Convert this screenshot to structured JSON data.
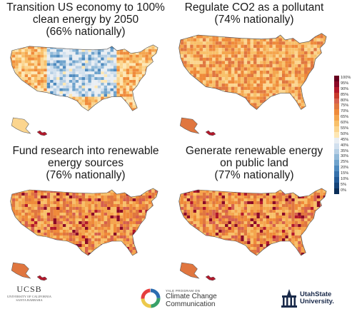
{
  "panels": [
    {
      "title_lines": [
        "Transition US economy to 100%",
        "clean energy by 2050",
        "(66% nationally)"
      ],
      "national_percent": 66,
      "scheme": "mixed"
    },
    {
      "title_lines": [
        "Regulate CO2 as a pollutant",
        "(74% nationally)"
      ],
      "national_percent": 74,
      "scheme": "orange"
    },
    {
      "title_lines": [
        "Fund research into renewable",
        "energy sources",
        "(76% nationally)"
      ],
      "national_percent": 76,
      "scheme": "orange-deep"
    },
    {
      "title_lines": [
        "Generate renewable energy",
        "on public land",
        "(77% nationally)"
      ],
      "national_percent": 77,
      "scheme": "orange-deep"
    }
  ],
  "legend": {
    "labels": [
      "100%",
      "95%",
      "90%",
      "85%",
      "80%",
      "75%",
      "70%",
      "65%",
      "60%",
      "55%",
      "50%",
      "45%",
      "40%",
      "35%",
      "30%",
      "25%",
      "20%",
      "15%",
      "10%",
      "5%",
      "0%"
    ],
    "colors": [
      "#67001f",
      "#8b0a27",
      "#b2182b",
      "#c73a2c",
      "#d6604d",
      "#e0763f",
      "#ef8a3a",
      "#f4a54e",
      "#f8c06a",
      "#fbd58f",
      "#fde7b4",
      "#e9eef3",
      "#d1e0ee",
      "#b6cfe5",
      "#92bad9",
      "#6fa3cc",
      "#4f8bbf",
      "#3672ac",
      "#225a96",
      "#154479",
      "#0b2e58"
    ]
  },
  "logos": {
    "ucsb": {
      "name": "UCSB",
      "sub_lines": [
        "UNIVERSITY OF CALIFORNIA",
        "SANTA BARBARA"
      ]
    },
    "yale": {
      "small": "YALE PROGRAM ON",
      "lines": [
        "Climate Change",
        "Communication"
      ]
    },
    "usu": {
      "lines": [
        "UtahState",
        "University."
      ]
    }
  }
}
